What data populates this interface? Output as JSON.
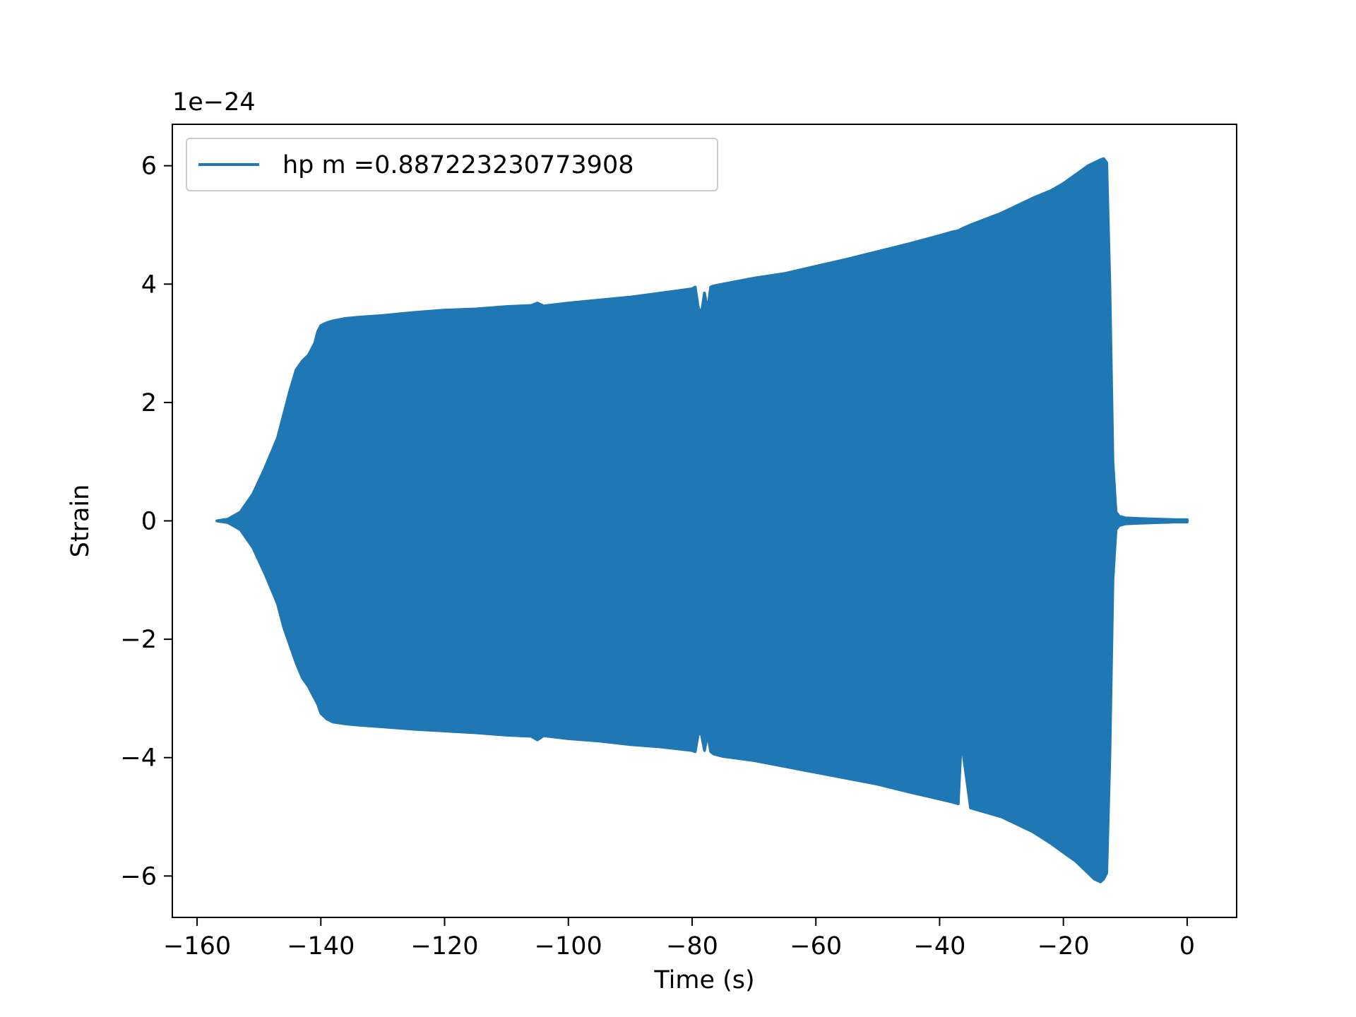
{
  "chart_data": {
    "type": "area",
    "xlabel": "Time (s)",
    "ylabel": "Strain",
    "offset_text": "1e−24",
    "xlim": [
      -164,
      8
    ],
    "ylim": [
      -6.7,
      6.7
    ],
    "x_ticks": [
      -160,
      -140,
      -120,
      -100,
      -80,
      -60,
      -40,
      -20,
      0
    ],
    "x_tick_labels": [
      "−160",
      "−140",
      "−120",
      "−100",
      "−80",
      "−60",
      "−40",
      "−20",
      "0"
    ],
    "y_ticks": [
      -6,
      -4,
      -2,
      0,
      2,
      4,
      6
    ],
    "y_tick_labels": [
      "−6",
      "−4",
      "−2",
      "0",
      "2",
      "4",
      "6"
    ],
    "grid": false,
    "legend_position": "upper-left",
    "series": [
      {
        "name": "hp m =0.887223230773908",
        "color": "#1f77b4",
        "envelope": {
          "x": [
            -156.8,
            -155,
            -153,
            -151,
            -149,
            -147,
            -146,
            -145,
            -144,
            -143,
            -142,
            -141,
            -140.5,
            -140,
            -139,
            -138,
            -136,
            -134,
            -130,
            -125,
            -120,
            -115,
            -110,
            -106,
            -105,
            -104,
            -100,
            -95,
            -90,
            -85,
            -80,
            -79.5,
            -79,
            -78.5,
            -78,
            -77.5,
            -77,
            -76.5,
            -75,
            -70,
            -65,
            -60,
            -55,
            -50,
            -45,
            -40,
            -38,
            -37,
            -36.5,
            -35,
            -30,
            -25,
            -22,
            -20,
            -18,
            -16,
            -15,
            -14,
            -13.5,
            -13,
            -12.5,
            -12,
            -11.5,
            -11,
            -10,
            -8,
            -5,
            -2,
            0
          ],
          "upper": [
            0.0,
            0.03,
            0.15,
            0.45,
            0.9,
            1.4,
            1.8,
            2.2,
            2.55,
            2.7,
            2.8,
            3.0,
            3.2,
            3.3,
            3.35,
            3.38,
            3.42,
            3.44,
            3.47,
            3.52,
            3.56,
            3.58,
            3.62,
            3.64,
            3.68,
            3.63,
            3.68,
            3.73,
            3.78,
            3.85,
            3.92,
            3.95,
            3.6,
            3.5,
            3.85,
            3.55,
            3.95,
            3.97,
            4.0,
            4.1,
            4.18,
            4.3,
            4.42,
            4.55,
            4.68,
            4.82,
            4.88,
            4.9,
            4.93,
            5.0,
            5.2,
            5.45,
            5.58,
            5.7,
            5.85,
            6.0,
            6.05,
            6.1,
            6.12,
            6.05,
            4.0,
            1.0,
            0.15,
            0.08,
            0.05,
            0.04,
            0.03,
            0.02,
            0.02
          ],
          "lower": [
            0.0,
            -0.03,
            -0.15,
            -0.45,
            -0.9,
            -1.4,
            -1.8,
            -2.1,
            -2.4,
            -2.65,
            -2.8,
            -3.0,
            -3.1,
            -3.25,
            -3.35,
            -3.4,
            -3.43,
            -3.45,
            -3.48,
            -3.52,
            -3.55,
            -3.58,
            -3.62,
            -3.64,
            -3.7,
            -3.63,
            -3.68,
            -3.72,
            -3.78,
            -3.82,
            -3.88,
            -3.9,
            -3.6,
            -3.6,
            -3.88,
            -3.6,
            -3.9,
            -3.94,
            -3.98,
            -4.05,
            -4.15,
            -4.25,
            -4.35,
            -4.45,
            -4.58,
            -4.7,
            -4.75,
            -4.78,
            -3.7,
            -4.85,
            -5.0,
            -5.25,
            -5.45,
            -5.6,
            -5.75,
            -5.95,
            -6.05,
            -6.1,
            -6.05,
            -5.95,
            -4.0,
            -1.0,
            -0.15,
            -0.08,
            -0.05,
            -0.04,
            -0.03,
            -0.02,
            -0.02
          ]
        }
      }
    ]
  }
}
